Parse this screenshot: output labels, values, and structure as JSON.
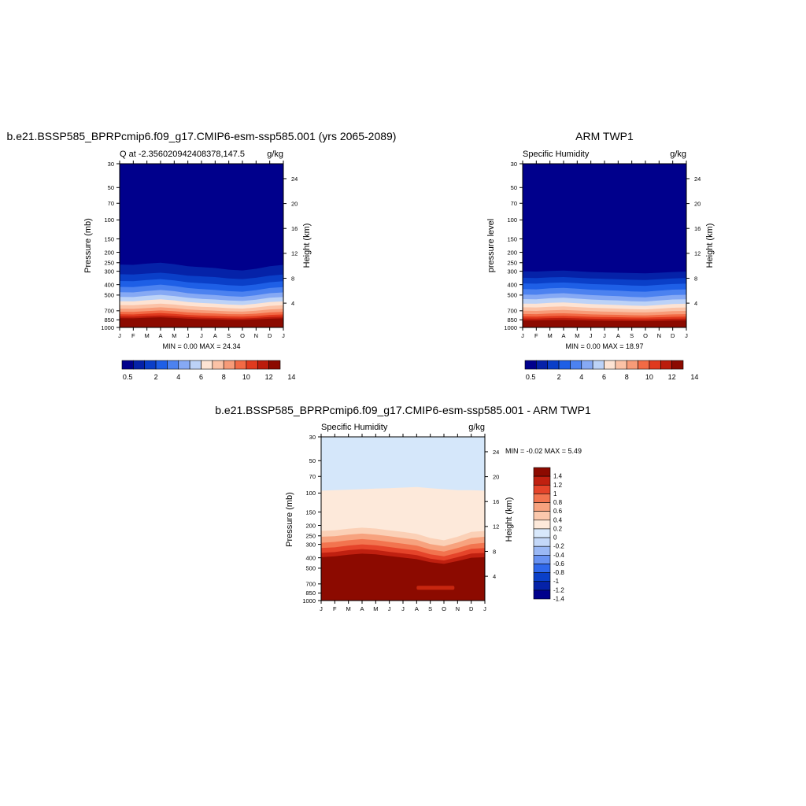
{
  "months": [
    "J",
    "F",
    "M",
    "A",
    "M",
    "J",
    "J",
    "A",
    "S",
    "O",
    "N",
    "D",
    "J"
  ],
  "pressure_ticks": [
    "30",
    "50",
    "70",
    "100",
    "150",
    "200",
    "250",
    "300",
    "400",
    "500",
    "700",
    "850",
    "1000"
  ],
  "height_ticks": [
    "24",
    "20",
    "16",
    "12",
    "8",
    "4"
  ],
  "colors": {
    "seq": [
      "#00008c",
      "#0522a8",
      "#0a3fc8",
      "#1e5fe6",
      "#4c82f0",
      "#86a9f4",
      "#bcd2f7",
      "#fde3d3",
      "#fbc2a6",
      "#f79b78",
      "#f26a45",
      "#e03a1e",
      "#bb1c0c",
      "#8c0a00"
    ],
    "diff": [
      "#00008c",
      "#0522a8",
      "#0a3fc8",
      "#2f68ec",
      "#6892f2",
      "#9ab8f5",
      "#c4d8f8",
      "#d8e8fb",
      "#fde9da",
      "#fbc8ac",
      "#f7a27e",
      "#f2744f",
      "#e5442a",
      "#c02010",
      "#8c0a00"
    ]
  },
  "chart_data": [
    {
      "type": "heatmap",
      "title": "b.e21.BSSP585_BPRPcmip6.f09_g17.CMIP6-esm-ssp585.001 (yrs 2065-2089)",
      "left_subtitle": "Q at -2.356020942408378,147.5",
      "right_subtitle": "g/kg",
      "ylabel": "Pressure (mb)",
      "y2label": "Height (km)",
      "minmax": "MIN =   0.00 MAX =  24.34",
      "colorbar_labels": [
        "0.5",
        "2",
        "4",
        "6",
        "8",
        "10",
        "12",
        "14"
      ],
      "x": [
        "J",
        "F",
        "M",
        "A",
        "M",
        "J",
        "J",
        "A",
        "S",
        "O",
        "N",
        "D",
        "J"
      ],
      "contour_pressures_mb": [
        [
          260,
          262,
          255,
          250,
          258,
          270,
          275,
          280,
          290,
          295,
          285,
          270,
          262
        ],
        [
          320,
          322,
          315,
          310,
          318,
          330,
          335,
          340,
          350,
          355,
          345,
          330,
          322
        ],
        [
          370,
          372,
          362,
          355,
          365,
          380,
          388,
          395,
          405,
          410,
          398,
          380,
          372
        ],
        [
          420,
          422,
          410,
          400,
          412,
          430,
          440,
          448,
          460,
          465,
          450,
          430,
          422
        ],
        [
          470,
          472,
          458,
          448,
          460,
          480,
          492,
          500,
          512,
          518,
          502,
          480,
          472
        ],
        [
          520,
          522,
          508,
          498,
          510,
          530,
          542,
          550,
          562,
          568,
          552,
          530,
          522
        ],
        [
          570,
          572,
          558,
          548,
          560,
          580,
          592,
          600,
          612,
          618,
          602,
          580,
          572
        ],
        [
          620,
          622,
          610,
          600,
          612,
          630,
          642,
          650,
          662,
          668,
          652,
          630,
          622
        ],
        [
          670,
          672,
          660,
          650,
          662,
          680,
          690,
          698,
          708,
          712,
          700,
          680,
          672
        ],
        [
          715,
          717,
          705,
          695,
          707,
          725,
          735,
          742,
          752,
          755,
          745,
          725,
          717
        ],
        [
          755,
          757,
          745,
          735,
          747,
          765,
          775,
          782,
          790,
          792,
          783,
          765,
          757
        ],
        [
          790,
          792,
          782,
          772,
          784,
          800,
          810,
          815,
          822,
          825,
          816,
          800,
          792
        ],
        [
          820,
          822,
          812,
          805,
          815,
          830,
          838,
          842,
          848,
          850,
          842,
          830,
          822
        ]
      ]
    },
    {
      "type": "heatmap",
      "title": "ARM TWP1",
      "left_subtitle": "Specific Humidity",
      "right_subtitle": "g/kg",
      "ylabel": "pressure level",
      "y2label": "Height (km)",
      "minmax": "MIN =   0.00 MAX =  18.97",
      "colorbar_labels": [
        "0.5",
        "2",
        "4",
        "6",
        "8",
        "10",
        "12",
        "14"
      ],
      "x": [
        "J",
        "F",
        "M",
        "A",
        "M",
        "J",
        "J",
        "A",
        "S",
        "O",
        "N",
        "D",
        "J"
      ],
      "contour_pressures_mb": [
        [
          300,
          302,
          298,
          296,
          300,
          305,
          308,
          310,
          312,
          314,
          310,
          305,
          302
        ],
        [
          345,
          347,
          342,
          340,
          345,
          350,
          353,
          356,
          360,
          362,
          356,
          350,
          347
        ],
        [
          390,
          392,
          385,
          382,
          388,
          395,
          398,
          402,
          408,
          410,
          402,
          395,
          392
        ],
        [
          440,
          442,
          432,
          428,
          436,
          445,
          450,
          455,
          462,
          465,
          455,
          445,
          442
        ],
        [
          495,
          497,
          485,
          480,
          490,
          500,
          506,
          512,
          520,
          524,
          512,
          500,
          497
        ],
        [
          545,
          547,
          535,
          530,
          540,
          550,
          556,
          562,
          570,
          574,
          562,
          550,
          547
        ],
        [
          600,
          602,
          590,
          585,
          595,
          605,
          612,
          618,
          626,
          630,
          618,
          605,
          602
        ],
        [
          650,
          652,
          642,
          636,
          646,
          656,
          662,
          668,
          676,
          680,
          668,
          656,
          652
        ],
        [
          700,
          702,
          692,
          688,
          696,
          706,
          712,
          716,
          722,
          725,
          716,
          706,
          702
        ],
        [
          750,
          752,
          742,
          738,
          746,
          756,
          760,
          764,
          770,
          772,
          764,
          756,
          752
        ],
        [
          790,
          792,
          784,
          780,
          788,
          796,
          800,
          803,
          808,
          810,
          803,
          796,
          792
        ],
        [
          825,
          826,
          818,
          815,
          822,
          830,
          833,
          836,
          840,
          842,
          836,
          830,
          826
        ],
        [
          860,
          861,
          855,
          852,
          858,
          864,
          866,
          868,
          871,
          873,
          868,
          864,
          861
        ]
      ]
    },
    {
      "type": "heatmap",
      "title": "b.e21.BSSP585_BPRPcmip6.f09_g17.CMIP6-esm-ssp585.001 - ARM TWP1",
      "left_subtitle": "Specific Humidity",
      "right_subtitle": "g/kg",
      "ylabel": "Pressure (mb)",
      "y2label": "Height (km)",
      "minmax": "MIN =  -0.02 MAX =   5.49",
      "colorbar_labels": [
        "1.4",
        "1.2",
        "1",
        "0.8",
        "0.6",
        "0.4",
        "0.2",
        "0",
        "-0.2",
        "-0.4",
        "-0.6",
        "-0.8",
        "-1",
        "-1.2",
        "-1.4"
      ],
      "x": [
        "J",
        "F",
        "M",
        "A",
        "M",
        "J",
        "J",
        "A",
        "S",
        "O",
        "N",
        "D",
        "J"
      ],
      "contour_pressures_mb": [
        [
          95,
          94,
          93,
          92,
          91,
          90,
          89,
          88,
          90,
          92,
          94,
          94,
          95
        ],
        [
          225,
          222,
          215,
          210,
          214,
          222,
          230,
          240,
          262,
          275,
          255,
          230,
          225
        ],
        [
          255,
          252,
          244,
          238,
          244,
          252,
          262,
          272,
          298,
          312,
          288,
          262,
          255
        ],
        [
          290,
          285,
          275,
          268,
          274,
          285,
          296,
          308,
          335,
          350,
          325,
          298,
          290
        ],
        [
          325,
          320,
          308,
          300,
          306,
          318,
          330,
          342,
          372,
          388,
          360,
          330,
          325
        ],
        [
          360,
          354,
          340,
          332,
          338,
          352,
          364,
          378,
          408,
          424,
          395,
          365,
          360
        ],
        [
          395,
          388,
          374,
          366,
          372,
          385,
          398,
          412,
          440,
          456,
          428,
          400,
          395
        ]
      ],
      "max_patch": {
        "x_range": [
          "A",
          "N"
        ],
        "pressure_mb": 760
      }
    }
  ]
}
